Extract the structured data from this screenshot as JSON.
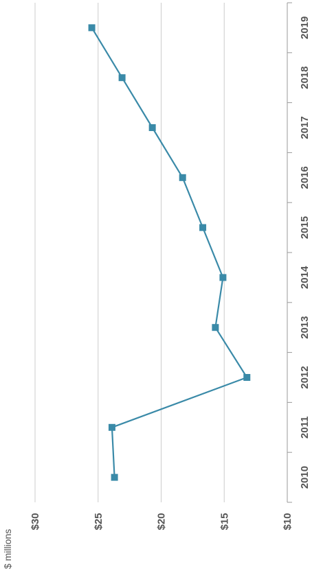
{
  "chart_data": {
    "type": "line",
    "orientation": "rotated-90",
    "title": "",
    "xlabel": "",
    "ylabel": "$ millions",
    "categories": [
      "2010",
      "2011",
      "2012",
      "2013",
      "2014",
      "2015",
      "2016",
      "2017",
      "2018",
      "2019"
    ],
    "values": [
      23.7,
      23.9,
      13.2,
      15.7,
      15.1,
      16.7,
      18.3,
      20.7,
      23.1,
      25.5
    ],
    "value_ticks": [
      "$10",
      "$15",
      "$20",
      "$25",
      "$30"
    ],
    "value_tick_values": [
      10,
      15,
      20,
      25,
      30
    ],
    "ylim": [
      10,
      30
    ],
    "grid": true,
    "colors": {
      "line": "#3a8aa8",
      "grid": "#cccccc",
      "axis": "#999999"
    }
  }
}
